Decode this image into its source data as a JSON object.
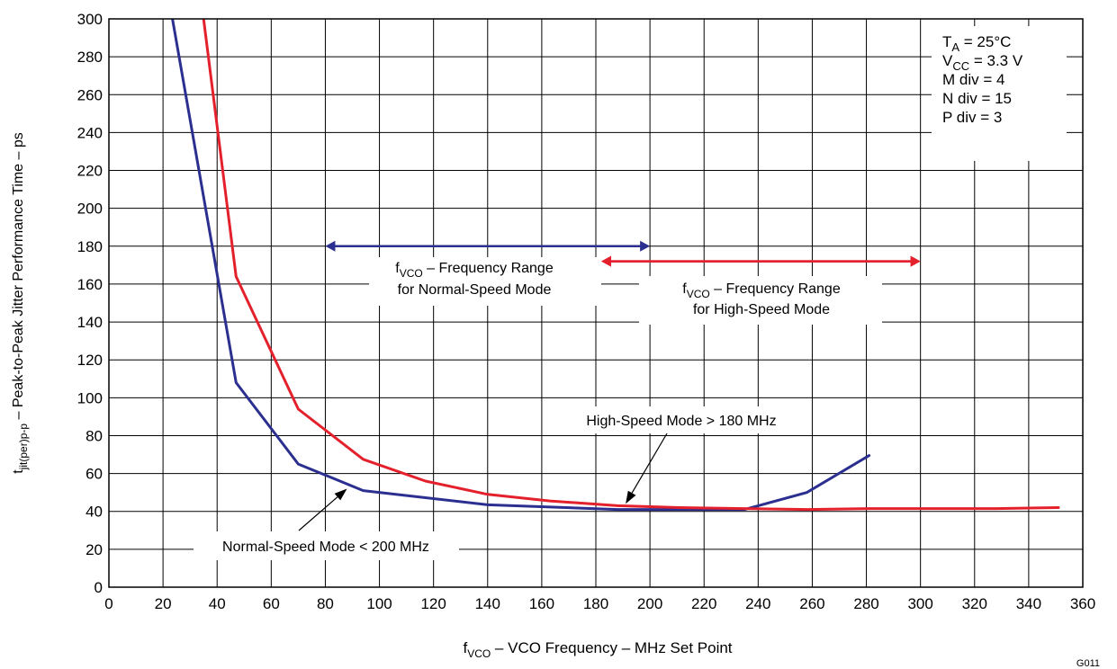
{
  "chart_data": {
    "type": "line",
    "xlabel": {
      "pre": "f",
      "sub": "VCO",
      "post": " – VCO Frequency – MHz Set Point"
    },
    "ylabel": {
      "pre": "t",
      "sub": "jit(per)p-p",
      "post": " – Peak-to-Peak Jitter Performance Time – ps"
    },
    "xlim": [
      0,
      360
    ],
    "ylim": [
      0,
      300
    ],
    "x_ticks": [
      0,
      20,
      40,
      60,
      80,
      100,
      120,
      140,
      160,
      180,
      200,
      220,
      240,
      260,
      280,
      300,
      320,
      340,
      360
    ],
    "y_ticks": [
      0,
      20,
      40,
      60,
      80,
      100,
      120,
      140,
      160,
      180,
      200,
      220,
      240,
      260,
      280,
      300
    ],
    "grid": true,
    "figure_id": "G011",
    "series": [
      {
        "key": "normal",
        "color": "#2b2f8f",
        "points": [
          [
            23.5,
            300
          ],
          [
            47,
            108
          ],
          [
            70,
            65
          ],
          [
            94,
            51
          ],
          [
            140,
            43.5
          ],
          [
            188,
            41
          ],
          [
            235,
            41
          ],
          [
            258,
            50
          ],
          [
            281,
            69.5
          ]
        ]
      },
      {
        "key": "high",
        "color": "#e3202b",
        "points": [
          [
            35,
            300
          ],
          [
            47,
            164
          ],
          [
            70,
            94
          ],
          [
            94,
            67.5
          ],
          [
            117,
            56
          ],
          [
            140,
            49
          ],
          [
            163,
            45.5
          ],
          [
            188,
            43
          ],
          [
            211,
            42
          ],
          [
            235,
            41.5
          ],
          [
            258,
            41
          ],
          [
            281,
            41.5
          ],
          [
            305,
            41.5
          ],
          [
            328,
            41.5
          ],
          [
            351,
            42
          ]
        ]
      }
    ],
    "conditions": [
      {
        "pre": "T",
        "sub": "A",
        "post": " = 25°C"
      },
      {
        "pre": "V",
        "sub": "CC",
        "post": " = 3.3 V"
      },
      {
        "pre": "M div = 4",
        "sub": "",
        "post": ""
      },
      {
        "pre": "N div = 15",
        "sub": "",
        "post": ""
      },
      {
        "pre": "P div = 3",
        "sub": "",
        "post": ""
      }
    ],
    "ranges": [
      {
        "key": "normal-range",
        "color": "#2b2f8f",
        "x_from": 80,
        "x_to": 200,
        "y": 180,
        "line1": {
          "pre": "f",
          "sub": "VCO",
          "post": " – Frequency Range"
        },
        "line2": "for Normal-Speed Mode"
      },
      {
        "key": "high-range",
        "color": "#e3202b",
        "x_from": 182,
        "x_to": 300,
        "y": 172,
        "line1": {
          "pre": "f",
          "sub": "VCO",
          "post": " – Frequency Range"
        },
        "line2": "for High-Speed Mode"
      }
    ],
    "annotations": [
      {
        "key": "normal-speed-label",
        "text": "Normal-Speed Mode < 200 MHz",
        "x": 88,
        "y": 22,
        "arrow_to": [
          88,
          52
        ]
      },
      {
        "key": "high-speed-label",
        "text": "High-Speed Mode > 180 MHz",
        "x": 216,
        "y": 88,
        "arrow_to": [
          191,
          44
        ]
      }
    ]
  }
}
